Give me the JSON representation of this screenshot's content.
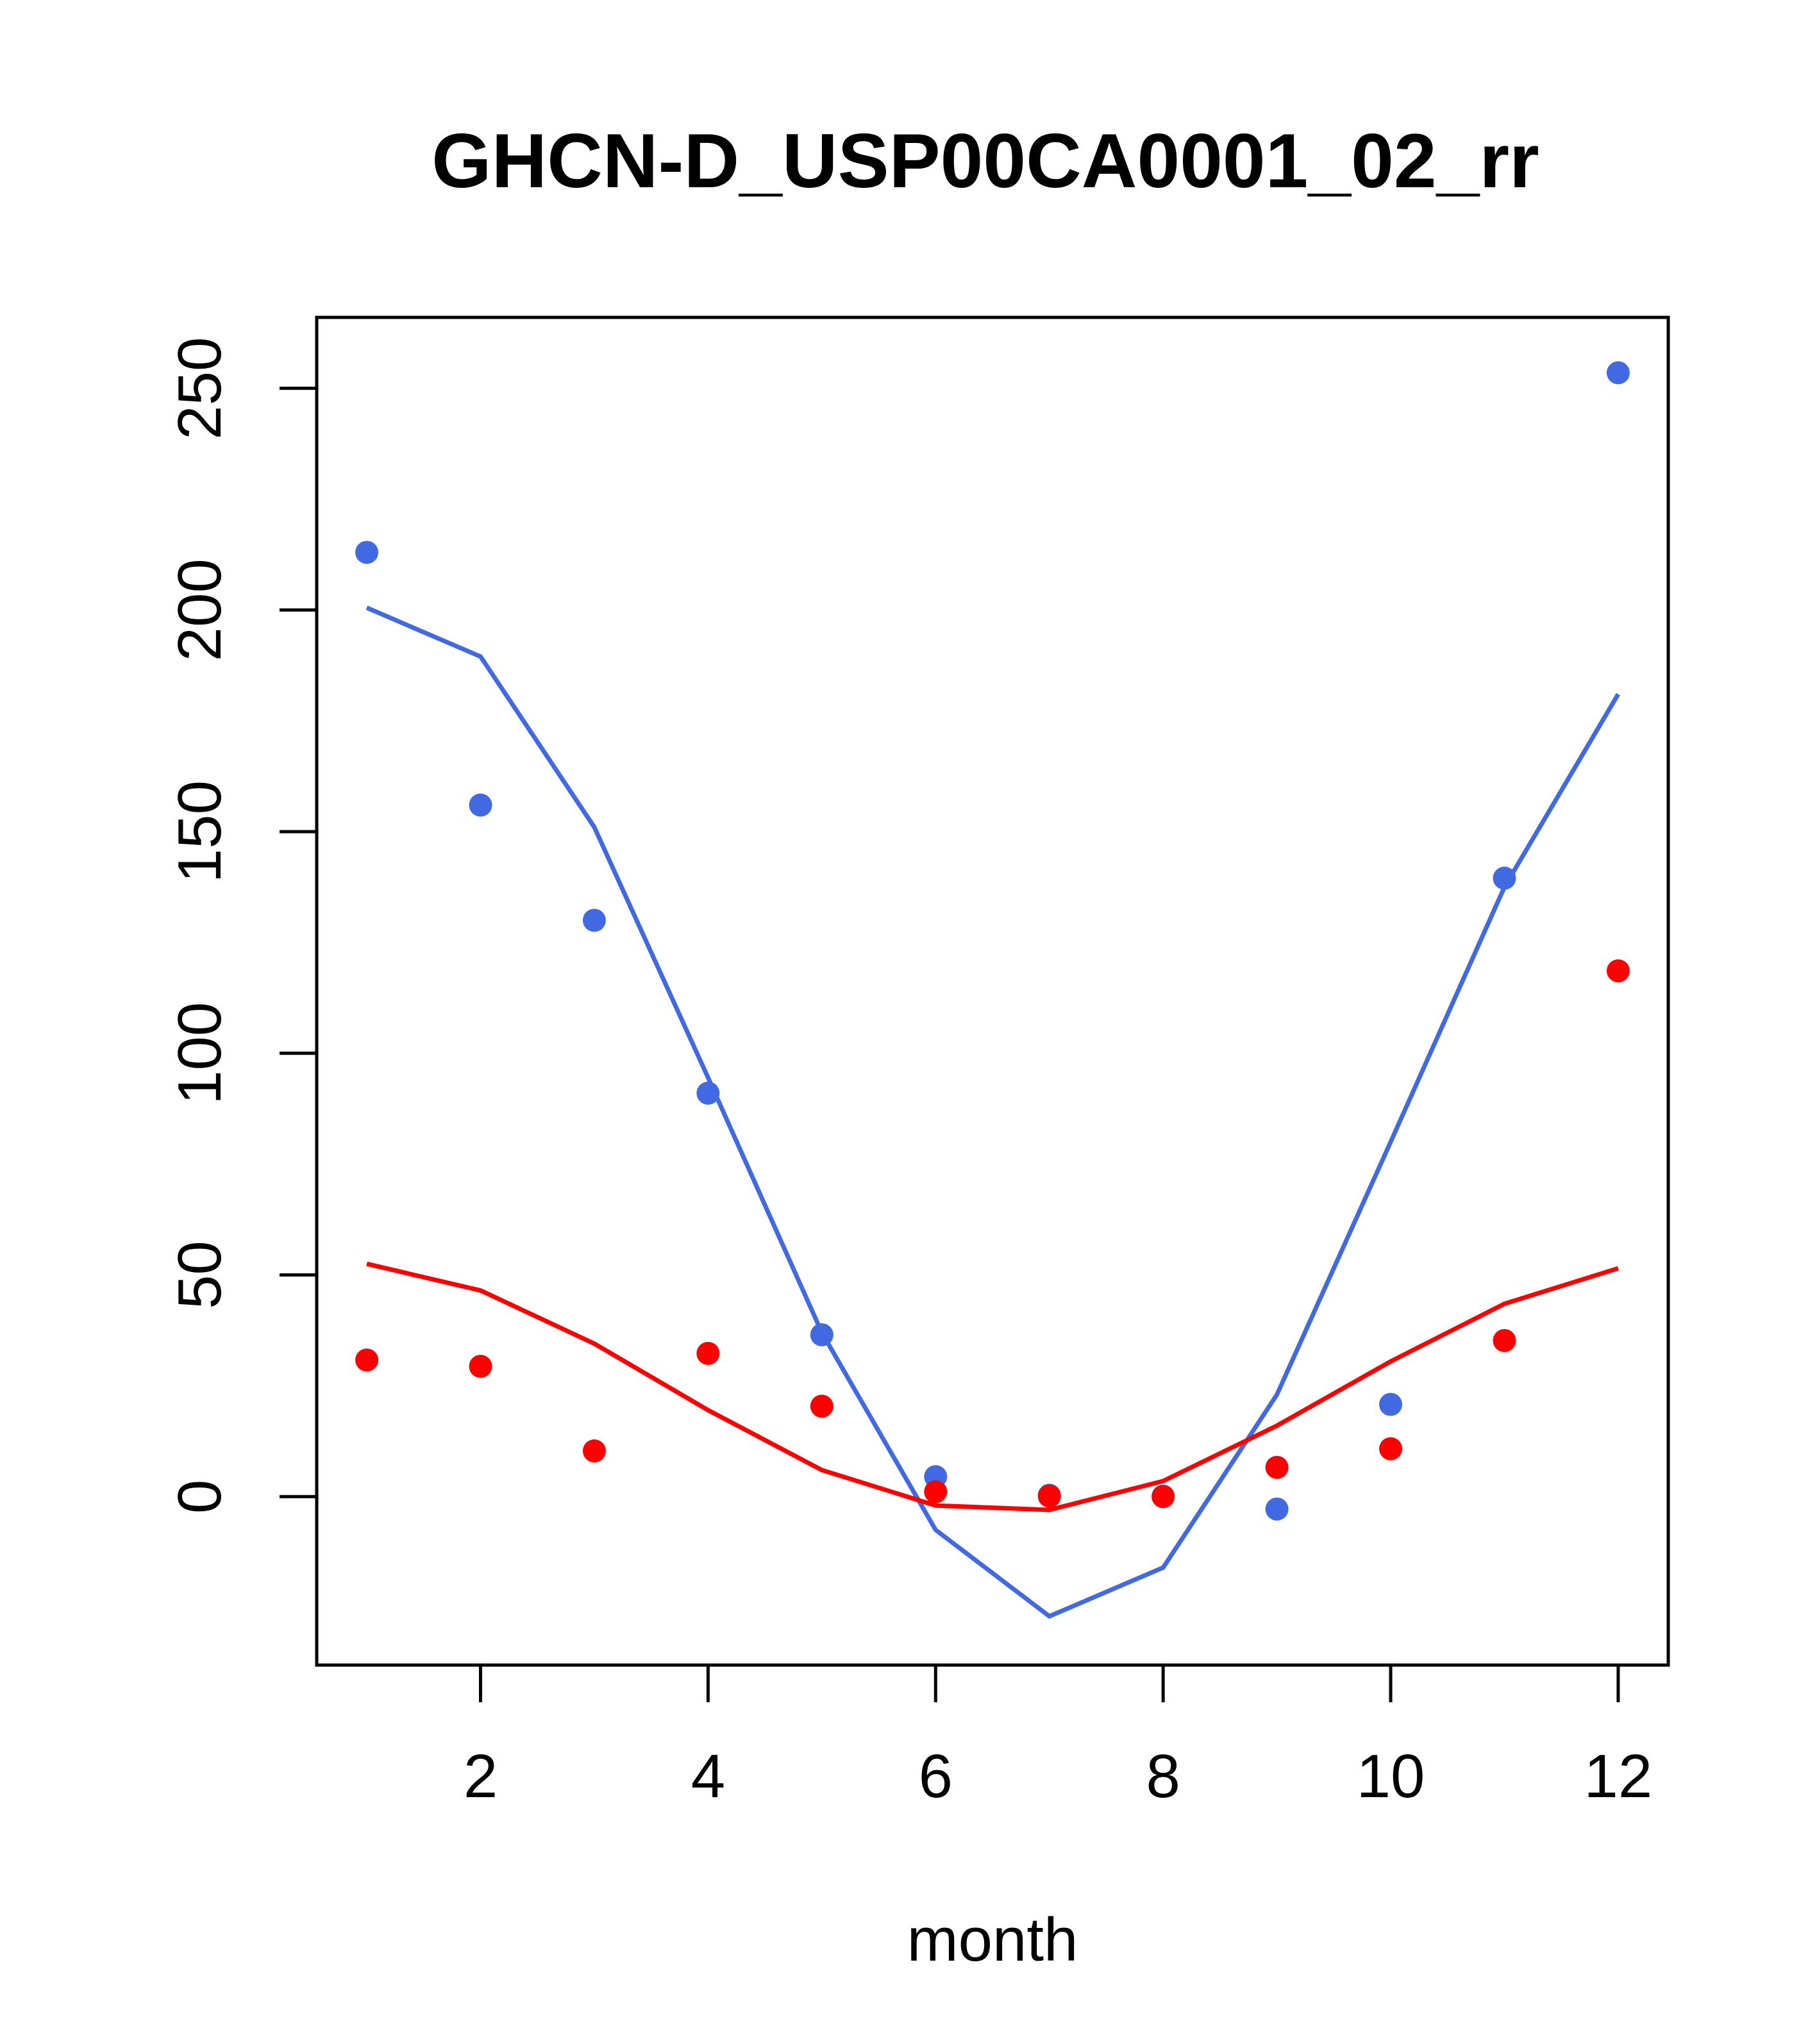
{
  "chart_data": {
    "type": "scatter",
    "title": "GHCN-D_USP00CA0001_02_rr",
    "xlabel": "month",
    "ylabel": "",
    "xlim": [
      0.56,
      12.44
    ],
    "ylim": [
      -38,
      266
    ],
    "x_ticks": [
      2,
      4,
      6,
      8,
      10,
      12
    ],
    "y_ticks": [
      0,
      50,
      100,
      150,
      200,
      250
    ],
    "grid": false,
    "legend": "none",
    "series": [
      {
        "kind": "points",
        "color": "#4169e1",
        "x": [
          1,
          2,
          3,
          4,
          5,
          6,
          7,
          8,
          9,
          10,
          11,
          12
        ],
        "y": [
          213,
          156,
          130,
          91,
          36.5,
          4.5,
          0.3,
          0.1,
          -2.8,
          20.8,
          139.5,
          253.5
        ]
      },
      {
        "kind": "line",
        "color": "#4169e1",
        "x": [
          1,
          2,
          3,
          4,
          5,
          6,
          7,
          8,
          9,
          10,
          11,
          12
        ],
        "y": [
          200.5,
          189.5,
          151,
          94.5,
          37,
          -7.5,
          -27,
          -16,
          23,
          80,
          137.5,
          181
        ]
      },
      {
        "kind": "points",
        "color": "#ff0000",
        "x": [
          1,
          2,
          3,
          4,
          5,
          6,
          7,
          8,
          9,
          10,
          11,
          12
        ],
        "y": [
          30.8,
          29.4,
          10.3,
          32.3,
          20.4,
          1.1,
          0.1,
          0.0,
          6.6,
          10.8,
          35.2,
          118.6
        ]
      },
      {
        "kind": "line",
        "color": "#ff0000",
        "x": [
          1,
          2,
          3,
          4,
          5,
          6,
          7,
          8,
          9,
          10,
          11,
          12
        ],
        "y": [
          52.5,
          46.5,
          34.5,
          19.5,
          6,
          -2,
          -3,
          3.5,
          16,
          30.5,
          43.5,
          51.5
        ]
      }
    ]
  }
}
